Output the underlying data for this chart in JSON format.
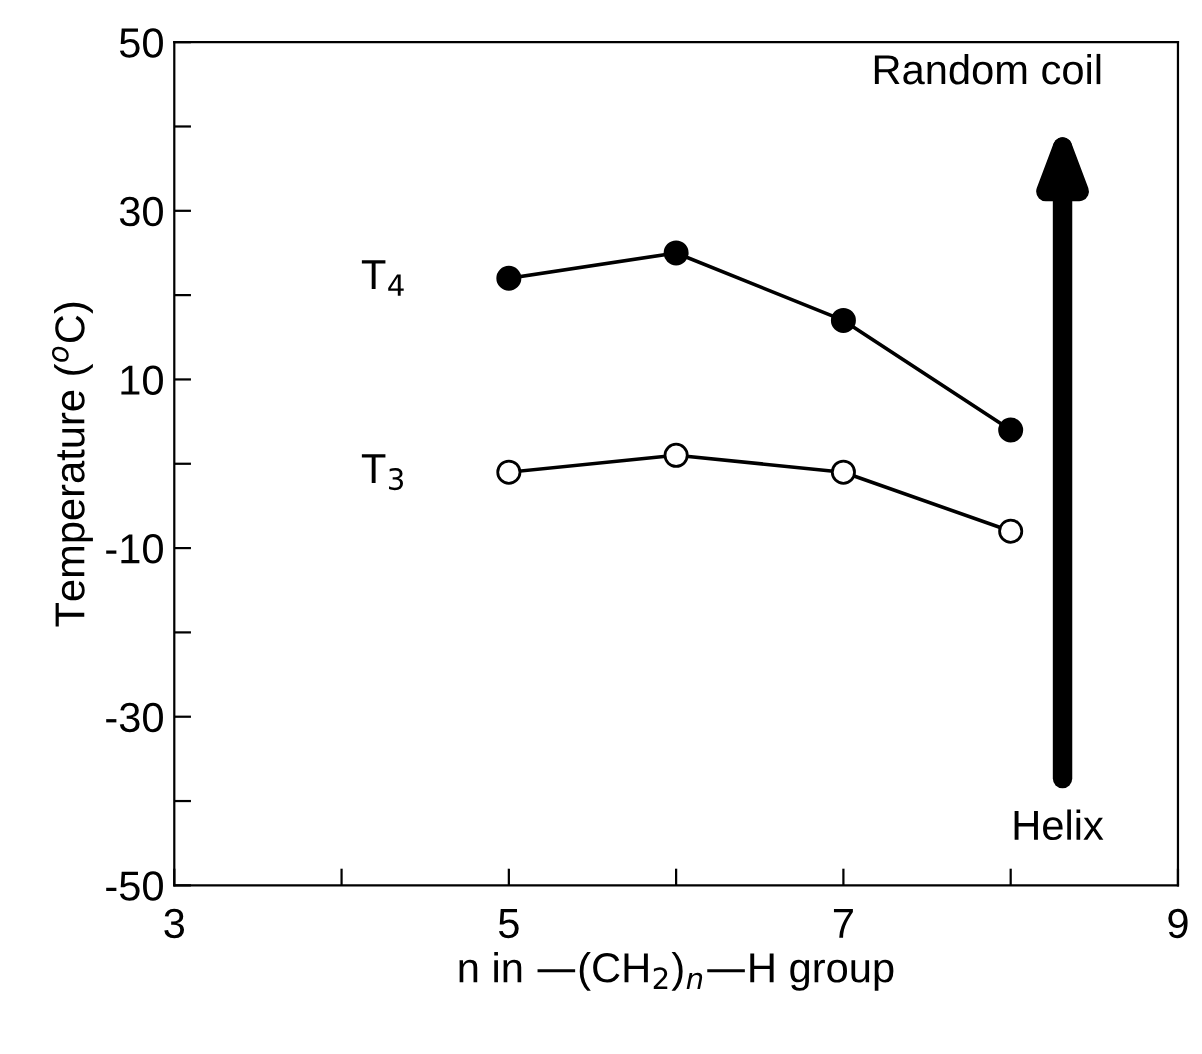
{
  "chart_data": {
    "type": "line",
    "xlabel": "n in —(CH$_{2}$)$_{n}$—H group",
    "ylabel": "Temperature ($^{o}$C)",
    "x": [
      5,
      6,
      7,
      8
    ],
    "series": [
      {
        "name": "T$_{4}$",
        "color": "#000000",
        "values": [
          22,
          25,
          17,
          4
        ],
        "marker": "circle"
      },
      {
        "name": "T$_{3}$",
        "color": "#000000",
        "values": [
          -1,
          1,
          -1,
          -8
        ],
        "marker": "circle"
      }
    ],
    "xlim": [
      3,
      9
    ],
    "xticks": [
      3,
      {
        "value": 4,
        "label": null
      },
      5,
      {
        "value": 6,
        "label": null
      },
      7,
      {
        "value": 8,
        "label": null
      },
      9
    ],
    "ylim": [
      -50,
      50
    ],
    "yticks": [
      -50,
      {
        "value": -40,
        "label": null
      },
      -30,
      {
        "value": -20,
        "label": null
      },
      -10,
      {
        "value": 0,
        "label": null
      },
      10,
      {
        "value": 20,
        "label": null
      },
      30,
      {
        "value": 40,
        "label": null
      },
      50
    ],
    "annotations": [
      "Random coil",
      "Helix"
    ],
    "grid": false,
    "legend": false,
    "line_style": "solid"
  }
}
